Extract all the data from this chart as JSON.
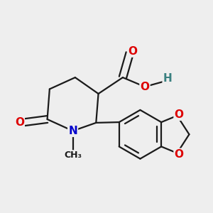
{
  "bg_color": "#eeeeee",
  "bond_color": "#1a1a1a",
  "bond_width": 1.6,
  "atom_colors": {
    "O": "#dd0000",
    "N": "#0000cc",
    "C": "#1a1a1a",
    "H": "#3a8080"
  },
  "font_size": 11,
  "font_size_small": 9
}
